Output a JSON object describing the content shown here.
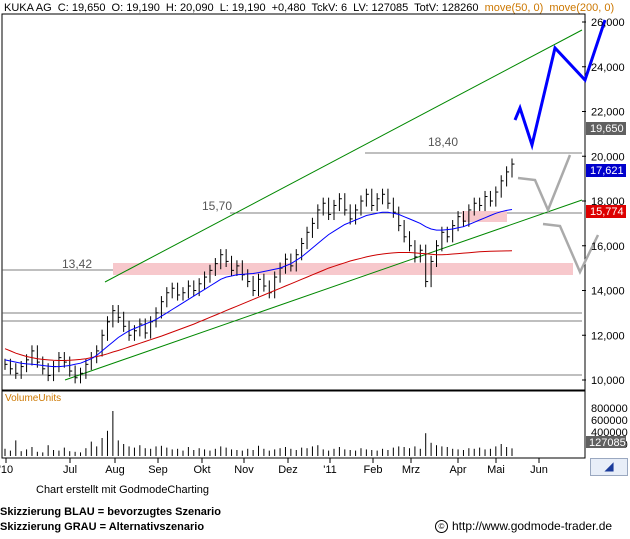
{
  "header": {
    "symbol": "KUKA AG",
    "c": "C: 19,650",
    "o": "O: 19,190",
    "h": "H: 20,090",
    "l": "L: 19,190",
    "chg": "+0,480",
    "tck": "TckV: 6",
    "lv": "LV: 127085",
    "totv": "TotV: 128260",
    "ma50": "move(50, 0)",
    "ma200": "move(200, 0)"
  },
  "colors": {
    "ma50": "#0000ff",
    "ma200": "#cc0000",
    "channel": "#008800",
    "blue_scenario": "#0000ff",
    "grey_scenario": "#a0a0a0",
    "zone": "#f7c8cc",
    "price_badge": "#606060",
    "ma50_badge": "#0000cc",
    "ma200_badge": "#dd0000"
  },
  "chart_data": {
    "type": "line",
    "x_tick_labels": [
      "'10",
      "Jul",
      "Aug",
      "Sep",
      "Okt",
      "Nov",
      "Dez",
      "'11",
      "Feb",
      "Mrz",
      "Apr",
      "Mai",
      "Jun"
    ],
    "y_tick_labels": [
      "26,000",
      "24,000",
      "22,000",
      "20,000",
      "18,000",
      "16,000",
      "14,000",
      "12,000",
      "10,000"
    ],
    "ylim": [
      10.0,
      26.0
    ],
    "level_labels": [
      "13,42",
      "15,70",
      "18,40"
    ],
    "levels": [
      13.42,
      15.7,
      18.4
    ],
    "price_badge": "19,650",
    "ma50_badge": "17,621",
    "ma200_badge": "15,774",
    "close": [
      10.7,
      10.5,
      10.3,
      10.6,
      10.9,
      11.3,
      10.8,
      10.5,
      10.2,
      10.6,
      11.0,
      10.8,
      10.4,
      10.1,
      10.3,
      10.7,
      11.0,
      11.3,
      12.0,
      12.6,
      13.1,
      12.8,
      12.4,
      12.0,
      12.2,
      12.5,
      12.1,
      12.6,
      13.0,
      13.5,
      13.9,
      14.1,
      13.8,
      13.9,
      14.2,
      14.0,
      14.3,
      14.6,
      14.9,
      15.2,
      15.6,
      15.3,
      14.9,
      15.1,
      14.7,
      14.4,
      14.0,
      14.5,
      14.2,
      13.9,
      14.6,
      15.0,
      15.4,
      15.1,
      15.6,
      16.1,
      16.6,
      17.0,
      17.6,
      17.9,
      17.4,
      17.8,
      18.1,
      17.6,
      17.2,
      17.6,
      18.0,
      18.3,
      17.8,
      18.1,
      18.3,
      17.9,
      17.5,
      16.9,
      16.4,
      16.0,
      15.5,
      15.8,
      14.4,
      15.3,
      16.0,
      16.6,
      16.4,
      16.9,
      17.3,
      17.1,
      17.6,
      17.9,
      17.8,
      18.2,
      18.0,
      18.4,
      18.9,
      19.3,
      19.65
    ],
    "ma50": [
      10.9,
      10.85,
      10.8,
      10.75,
      10.72,
      10.7,
      10.68,
      10.65,
      10.62,
      10.6,
      10.6,
      10.62,
      10.65,
      10.7,
      10.75,
      10.85,
      10.95,
      11.1,
      11.3,
      11.5,
      11.7,
      11.9,
      12.05,
      12.2,
      12.3,
      12.4,
      12.5,
      12.6,
      12.7,
      12.85,
      13.0,
      13.15,
      13.3,
      13.45,
      13.6,
      13.75,
      13.9,
      14.05,
      14.2,
      14.35,
      14.5,
      14.6,
      14.65,
      14.7,
      14.72,
      14.74,
      14.76,
      14.8,
      14.85,
      14.9,
      14.95,
      15.0,
      15.1,
      15.2,
      15.35,
      15.5,
      15.7,
      15.9,
      16.1,
      16.3,
      16.5,
      16.65,
      16.8,
      16.95,
      17.05,
      17.15,
      17.25,
      17.35,
      17.4,
      17.45,
      17.5,
      17.5,
      17.45,
      17.4,
      17.3,
      17.2,
      17.1,
      17.0,
      16.85,
      16.75,
      16.7,
      16.7,
      16.72,
      16.75,
      16.8,
      16.85,
      16.95,
      17.05,
      17.15,
      17.25,
      17.35,
      17.45,
      17.52,
      17.58,
      17.621
    ],
    "ma200": [
      11.4,
      11.3,
      11.2,
      11.12,
      11.05,
      11.0,
      10.95,
      10.92,
      10.9,
      10.88,
      10.87,
      10.87,
      10.88,
      10.9,
      10.92,
      10.95,
      11.0,
      11.05,
      11.1,
      11.17,
      11.25,
      11.32,
      11.4,
      11.48,
      11.56,
      11.64,
      11.72,
      11.8,
      11.88,
      11.96,
      12.05,
      12.14,
      12.23,
      12.32,
      12.41,
      12.5,
      12.6,
      12.7,
      12.8,
      12.9,
      13.0,
      13.1,
      13.2,
      13.3,
      13.4,
      13.5,
      13.6,
      13.7,
      13.8,
      13.9,
      14.0,
      14.1,
      14.2,
      14.3,
      14.4,
      14.5,
      14.6,
      14.7,
      14.8,
      14.9,
      15.0,
      15.08,
      15.16,
      15.24,
      15.32,
      15.38,
      15.44,
      15.5,
      15.55,
      15.6,
      15.63,
      15.66,
      15.68,
      15.7,
      15.7,
      15.7,
      15.68,
      15.66,
      15.64,
      15.62,
      15.6,
      15.6,
      15.61,
      15.63,
      15.65,
      15.67,
      15.69,
      15.71,
      15.73,
      15.745,
      15.755,
      15.76,
      15.765,
      15.77,
      15.774
    ],
    "volume_axis": [
      "800000",
      "600000",
      "400000",
      "200000"
    ],
    "volume_badge": "127085",
    "volume_label": "VolumeUnits",
    "volume": [
      120,
      90,
      260,
      80,
      110,
      150,
      70,
      60,
      180,
      100,
      90,
      140,
      80,
      70,
      60,
      130,
      240,
      160,
      300,
      420,
      750,
      260,
      200,
      160,
      140,
      180,
      130,
      120,
      160,
      170,
      140,
      110,
      120,
      90,
      150,
      100,
      130,
      110,
      90,
      120,
      160,
      140,
      110,
      100,
      90,
      120,
      100,
      170,
      120,
      90,
      110,
      130,
      150,
      120,
      100,
      140,
      130,
      160,
      180,
      110,
      90,
      120,
      150,
      110,
      100,
      90,
      130,
      110,
      100,
      90,
      120,
      100,
      140,
      160,
      150,
      130,
      160,
      120,
      380,
      220,
      180,
      160,
      150,
      120,
      110,
      100,
      130,
      120,
      140,
      110,
      120,
      160,
      200,
      150,
      127
    ]
  },
  "footer": {
    "credit": "Chart erstellt mit GodmodeCharting",
    "legend_blue": "Skizzierung BLAU = bevorzugtes Szenario",
    "legend_grey": "Skizzierung GRAU = Alternativszenario",
    "url": "http://www.godmode-trader.de",
    "copyright": "©"
  }
}
